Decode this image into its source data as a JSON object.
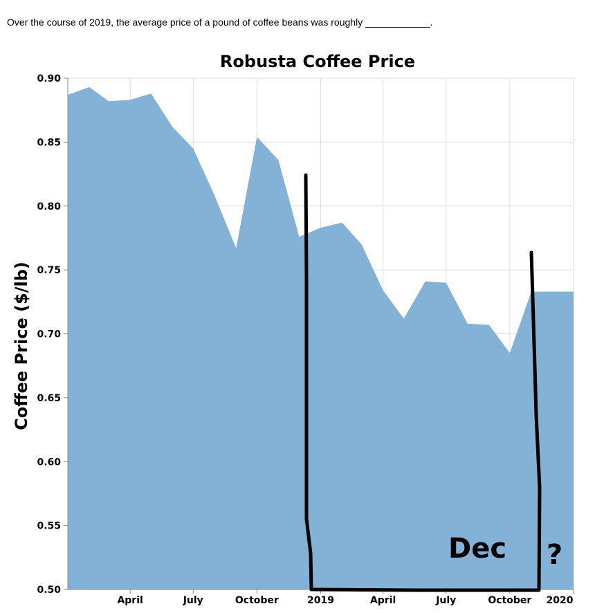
{
  "question": {
    "text": "Over the course of 2019, the average price of a pound of coffee beans was roughly ____________."
  },
  "chart_data": {
    "type": "area",
    "title": "Robusta Coffee Price",
    "xlabel": "",
    "ylabel": "Coffee Price ($/lb)",
    "ylim": [
      0.5,
      0.9
    ],
    "y_ticks": [
      "0.50",
      "0.55",
      "0.60",
      "0.65",
      "0.70",
      "0.75",
      "0.80",
      "0.85",
      "0.90"
    ],
    "x_ticks": [
      "April",
      "July",
      "October",
      "2019",
      "April",
      "July",
      "October",
      "2020"
    ],
    "x_tick_dates": [
      "2018-04-01",
      "2018-07-01",
      "2018-10-01",
      "2019-01-01",
      "2019-04-01",
      "2019-07-01",
      "2019-10-01",
      "2020-01-01"
    ],
    "xlim": [
      "2018-01-01",
      "2020-01-01"
    ],
    "grid": true,
    "color": "#84b2d7",
    "series": [
      {
        "x": [
          "2018-01-01",
          "2018-02-01",
          "2018-03-01",
          "2018-04-01",
          "2018-05-01",
          "2018-06-01",
          "2018-07-01",
          "2018-08-01",
          "2018-09-01",
          "2018-10-01",
          "2018-11-01",
          "2018-12-01",
          "2019-01-01",
          "2019-02-01",
          "2019-03-01",
          "2019-04-01",
          "2019-05-01",
          "2019-06-01",
          "2019-07-01",
          "2019-08-01",
          "2019-09-01",
          "2019-10-01",
          "2019-11-01",
          "2019-12-01",
          "2020-01-01"
        ],
        "values": [
          0.887,
          0.893,
          0.882,
          0.883,
          0.888,
          0.862,
          0.845,
          0.808,
          0.767,
          0.854,
          0.836,
          0.776,
          0.783,
          0.787,
          0.77,
          0.734,
          0.712,
          0.741,
          0.74,
          0.708,
          0.707,
          0.685,
          0.733,
          0.733,
          0.733
        ]
      }
    ]
  },
  "annotations": {
    "handwritten_label": "Dec",
    "handwritten_mark": "?"
  }
}
